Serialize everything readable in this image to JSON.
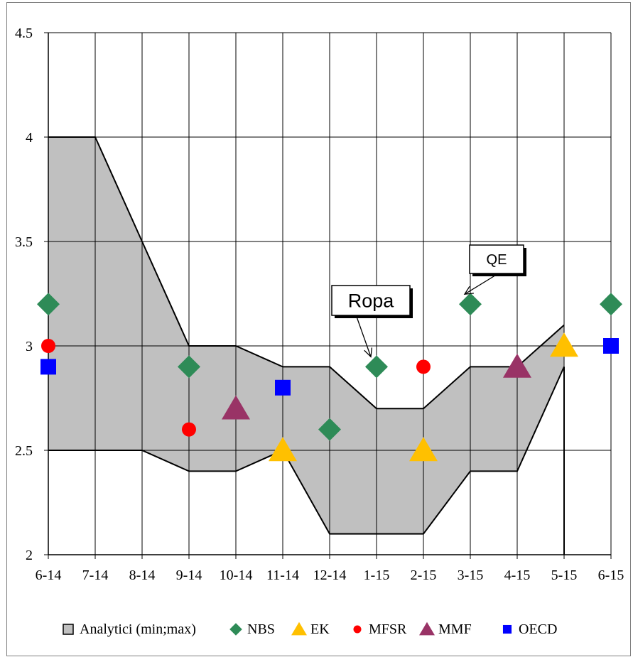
{
  "chart_data": {
    "type": "area",
    "categories": [
      "6-14",
      "7-14",
      "8-14",
      "9-14",
      "10-14",
      "11-14",
      "12-14",
      "1-15",
      "2-15",
      "3-15",
      "4-15",
      "5-15",
      "6-15"
    ],
    "ylim": [
      2,
      4.5
    ],
    "yticks": [
      "2",
      "2.5",
      "3",
      "3.5",
      "4",
      "4.5"
    ],
    "grid": true,
    "legend_position": "bottom",
    "band": {
      "name": "Analytici (min;max)",
      "color": "#c0c0c0",
      "max": [
        4.0,
        4.0,
        3.5,
        3.0,
        3.0,
        2.9,
        2.9,
        2.7,
        2.7,
        2.9,
        2.9,
        3.1,
        null
      ],
      "min": [
        2.5,
        2.5,
        2.5,
        2.4,
        2.4,
        2.5,
        2.1,
        2.1,
        2.1,
        2.4,
        2.4,
        2.9,
        null
      ]
    },
    "series": [
      {
        "name": "NBS",
        "marker": "diamond",
        "color": "#2e8b57",
        "values": [
          3.2,
          null,
          null,
          2.9,
          null,
          null,
          2.6,
          2.9,
          null,
          3.2,
          null,
          null,
          3.2
        ]
      },
      {
        "name": "EK",
        "marker": "triangle",
        "color": "#ffc000",
        "values": [
          null,
          null,
          null,
          null,
          null,
          2.5,
          null,
          null,
          2.5,
          null,
          null,
          3.0,
          null
        ]
      },
      {
        "name": "MFSR",
        "marker": "circle",
        "color": "#ff0000",
        "values": [
          3.0,
          null,
          null,
          2.6,
          null,
          null,
          null,
          null,
          2.9,
          null,
          null,
          null,
          null
        ]
      },
      {
        "name": "MMF",
        "marker": "triangle",
        "color": "#993366",
        "values": [
          null,
          null,
          null,
          null,
          2.7,
          null,
          null,
          null,
          null,
          null,
          2.9,
          null,
          null
        ]
      },
      {
        "name": "OECD",
        "marker": "square",
        "color": "#0000ff",
        "values": [
          2.9,
          null,
          null,
          null,
          null,
          2.8,
          null,
          null,
          null,
          null,
          null,
          null,
          3.0
        ]
      }
    ],
    "annotations": [
      {
        "text": "Ropa",
        "points_to": {
          "x": "1-15",
          "y": 2.9
        }
      },
      {
        "text": "QE",
        "points_to": {
          "x": "3-15",
          "y": 3.2
        }
      }
    ]
  }
}
